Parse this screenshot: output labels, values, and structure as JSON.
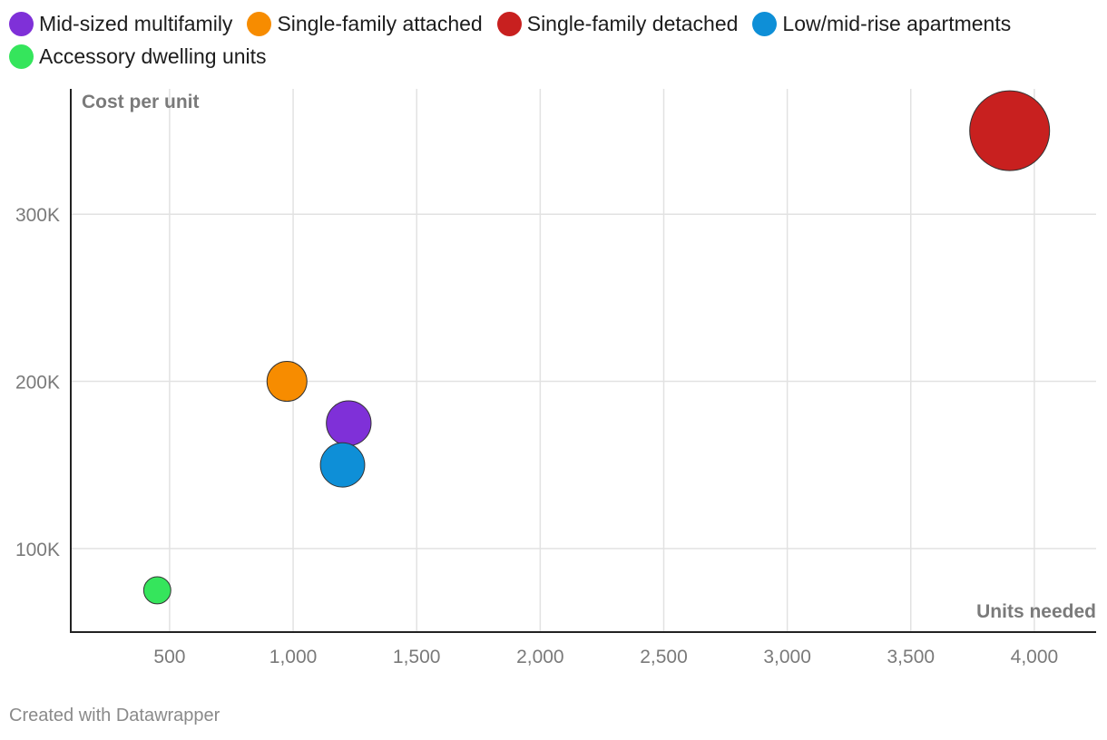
{
  "chart_data": {
    "type": "scatter",
    "title": "",
    "xlabel": "Units needed",
    "ylabel": "Cost per unit",
    "xlim": [
      100,
      4250
    ],
    "ylim": [
      50000,
      375000
    ],
    "x_ticks": [
      500,
      1000,
      1500,
      2000,
      2500,
      3000,
      3500,
      4000
    ],
    "x_tick_labels": [
      "500",
      "1,000",
      "1,500",
      "2,000",
      "2,500",
      "3,000",
      "3,500",
      "4,000"
    ],
    "y_ticks": [
      100000,
      200000,
      300000
    ],
    "y_tick_labels": [
      "100K",
      "200K",
      "300K"
    ],
    "grid": true,
    "legend_position": "top",
    "series": [
      {
        "name": "Mid-sized multifamily",
        "color": "#7f30d8",
        "x": 1225,
        "y": 175000,
        "size": 1225
      },
      {
        "name": "Single-family attached",
        "color": "#f78c00",
        "x": 975,
        "y": 200000,
        "size": 975
      },
      {
        "name": "Single-family detached",
        "color": "#c8201f",
        "x": 3900,
        "y": 350000,
        "size": 3900
      },
      {
        "name": "Low/mid-rise apartments",
        "color": "#0e8fd7",
        "x": 1200,
        "y": 150000,
        "size": 1200
      },
      {
        "name": "Accessory dwelling units",
        "color": "#35e55c",
        "x": 450,
        "y": 75000,
        "size": 450
      }
    ]
  },
  "footer": "Created with Datawrapper"
}
